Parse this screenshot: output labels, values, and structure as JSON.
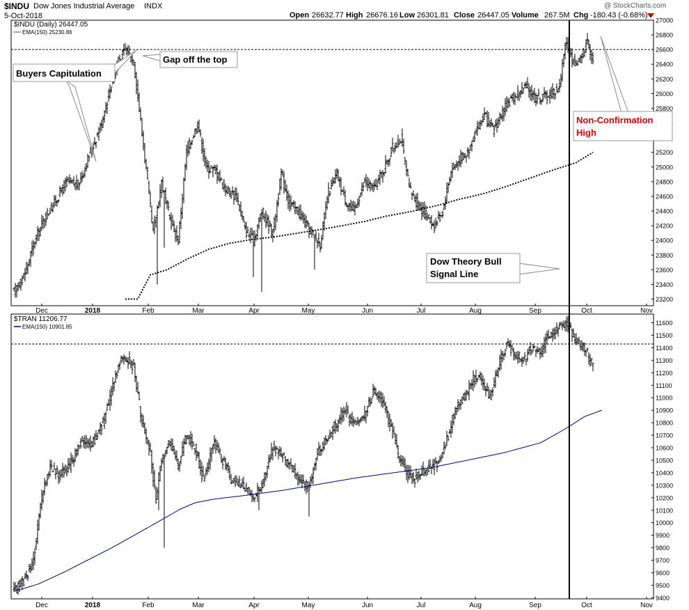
{
  "header": {
    "symbol": "$INDU",
    "name": "Dow Jones Industrial Average",
    "exchange": "INDX",
    "date": "5-Oct-2018",
    "open_label": "Open",
    "open": "26632.77",
    "high_label": "High",
    "high": "26676.16",
    "low_label": "Low",
    "low": "26301.81",
    "close_label": "Close",
    "close": "26447.05",
    "volume_label": "Volume",
    "volume": "267.5M",
    "chg_label": "Chg",
    "chg": "-180.43 (-0.68%)",
    "watermark": "@ StockCharts.com"
  },
  "colors": {
    "up": "#000000",
    "ema_top": "#000000",
    "ema_bottom": "#000080",
    "annotation_red": "#dd0000",
    "arrow_down": "#cc0000"
  },
  "chart_data": [
    {
      "type": "ohlc",
      "panel": "top",
      "legend_symbol": "$INDU (Daily) 26447.05",
      "legend_ema": "EMA(150) 25230.86",
      "ylim": [
        23200,
        27000
      ],
      "yticks": [
        "27000",
        "26800",
        "26600",
        "26400",
        "26200",
        "26000",
        "25800",
        "25600",
        "25400",
        "25200",
        "25000",
        "24800",
        "24600",
        "24400",
        "24200",
        "24000",
        "23800",
        "23600",
        "23400",
        "23200"
      ],
      "xticks": [
        "Dec",
        "2018",
        "Feb",
        "Mar",
        "Apr",
        "May",
        "Jun",
        "Jul",
        "Aug",
        "Sep",
        "Oct",
        "Nov"
      ],
      "resistance": 26600,
      "anchors": [
        [
          0,
          23300
        ],
        [
          8,
          23550
        ],
        [
          15,
          24000
        ],
        [
          22,
          24300
        ],
        [
          30,
          24550
        ],
        [
          38,
          24800
        ],
        [
          46,
          24750
        ],
        [
          55,
          25200
        ],
        [
          63,
          25600
        ],
        [
          68,
          26000
        ],
        [
          74,
          26400
        ],
        [
          80,
          26600
        ],
        [
          86,
          26450
        ],
        [
          93,
          25300
        ],
        [
          100,
          24100
        ],
        [
          106,
          24800
        ],
        [
          112,
          24300
        ],
        [
          118,
          24000
        ],
        [
          124,
          25200
        ],
        [
          132,
          25600
        ],
        [
          138,
          25000
        ],
        [
          145,
          24950
        ],
        [
          152,
          24700
        ],
        [
          160,
          24600
        ],
        [
          166,
          24150
        ],
        [
          172,
          24000
        ],
        [
          178,
          24400
        ],
        [
          186,
          24100
        ],
        [
          192,
          24900
        ],
        [
          198,
          24500
        ],
        [
          204,
          24400
        ],
        [
          212,
          24150
        ],
        [
          220,
          23950
        ],
        [
          226,
          24650
        ],
        [
          232,
          24900
        ],
        [
          238,
          24550
        ],
        [
          244,
          24400
        ],
        [
          252,
          24800
        ],
        [
          258,
          24700
        ],
        [
          264,
          24900
        ],
        [
          272,
          25250
        ],
        [
          278,
          25400
        ],
        [
          284,
          24700
        ],
        [
          290,
          24500
        ],
        [
          296,
          24350
        ],
        [
          302,
          24200
        ],
        [
          308,
          24400
        ],
        [
          314,
          24950
        ],
        [
          320,
          25100
        ],
        [
          326,
          25200
        ],
        [
          332,
          25500
        ],
        [
          338,
          25700
        ],
        [
          344,
          25500
        ],
        [
          350,
          25700
        ],
        [
          356,
          25900
        ],
        [
          362,
          26000
        ],
        [
          368,
          26100
        ],
        [
          374,
          25950
        ],
        [
          380,
          25950
        ],
        [
          386,
          26000
        ],
        [
          392,
          26100
        ],
        [
          396,
          26700
        ],
        [
          400,
          26500
        ],
        [
          404,
          26400
        ],
        [
          408,
          26500
        ],
        [
          412,
          26750
        ],
        [
          416,
          26450
        ]
      ],
      "ema_anchors": [
        [
          0,
          23200
        ],
        [
          6,
          23200
        ],
        [
          12,
          23530
        ],
        [
          20,
          23600
        ],
        [
          30,
          23750
        ],
        [
          40,
          23880
        ],
        [
          50,
          23960
        ],
        [
          60,
          24010
        ],
        [
          72,
          24050
        ],
        [
          85,
          24110
        ],
        [
          100,
          24180
        ],
        [
          115,
          24260
        ],
        [
          125,
          24330
        ],
        [
          138,
          24400
        ],
        [
          150,
          24480
        ],
        [
          160,
          24560
        ],
        [
          172,
          24640
        ],
        [
          182,
          24730
        ],
        [
          194,
          24850
        ],
        [
          204,
          24950
        ],
        [
          216,
          25060
        ],
        [
          224,
          25200
        ]
      ],
      "annotations": [
        {
          "id": "buyers-capitulation",
          "text": "Buyers Capitulation"
        },
        {
          "id": "gap-off-top",
          "text": "Gap off the top"
        },
        {
          "id": "dow-theory",
          "line1": "Dow Theory Bull",
          "line2": "Signal Line"
        },
        {
          "id": "non-confirmation",
          "line1": "Non-Confirmation",
          "line2": "High"
        }
      ]
    },
    {
      "type": "ohlc",
      "panel": "bottom",
      "legend_symbol": "$TRAN 11206.77",
      "legend_ema": "EMA(150) 10901.85",
      "ylim": [
        9400,
        11650
      ],
      "yticks": [
        "11600",
        "11500",
        "11400",
        "11300",
        "11200",
        "11100",
        "11000",
        "10900",
        "10800",
        "10700",
        "10600",
        "10500",
        "10400",
        "10300",
        "10200",
        "10100",
        "10000",
        "9900",
        "9800",
        "9700",
        "9600",
        "9500",
        "9400"
      ],
      "xticks": [
        "Dec",
        "2018",
        "Feb",
        "Mar",
        "Apr",
        "May",
        "Jun",
        "Jul",
        "Aug",
        "Sep",
        "Oct",
        "Nov"
      ],
      "resistance": 11430,
      "anchors": [
        [
          0,
          9450
        ],
        [
          8,
          9550
        ],
        [
          14,
          9700
        ],
        [
          20,
          10200
        ],
        [
          26,
          10450
        ],
        [
          32,
          10380
        ],
        [
          40,
          10450
        ],
        [
          48,
          10650
        ],
        [
          56,
          10630
        ],
        [
          64,
          10800
        ],
        [
          70,
          11050
        ],
        [
          76,
          11300
        ],
        [
          82,
          11300
        ],
        [
          86,
          11250
        ],
        [
          92,
          10800
        ],
        [
          98,
          10550
        ],
        [
          102,
          10200
        ],
        [
          106,
          10500
        ],
        [
          112,
          10650
        ],
        [
          118,
          10450
        ],
        [
          124,
          10700
        ],
        [
          130,
          10600
        ],
        [
          136,
          10350
        ],
        [
          144,
          10650
        ],
        [
          150,
          10500
        ],
        [
          156,
          10350
        ],
        [
          164,
          10300
        ],
        [
          172,
          10200
        ],
        [
          178,
          10300
        ],
        [
          186,
          10600
        ],
        [
          192,
          10550
        ],
        [
          198,
          10450
        ],
        [
          204,
          10350
        ],
        [
          212,
          10300
        ],
        [
          218,
          10550
        ],
        [
          226,
          10700
        ],
        [
          232,
          10800
        ],
        [
          238,
          10900
        ],
        [
          244,
          10800
        ],
        [
          252,
          10850
        ],
        [
          258,
          11050
        ],
        [
          264,
          11000
        ],
        [
          270,
          10800
        ],
        [
          276,
          10550
        ],
        [
          282,
          10400
        ],
        [
          288,
          10350
        ],
        [
          294,
          10400
        ],
        [
          300,
          10450
        ],
        [
          306,
          10500
        ],
        [
          312,
          10700
        ],
        [
          318,
          10950
        ],
        [
          324,
          11000
        ],
        [
          330,
          11150
        ],
        [
          336,
          11150
        ],
        [
          342,
          11000
        ],
        [
          348,
          11250
        ],
        [
          354,
          11450
        ],
        [
          360,
          11350
        ],
        [
          366,
          11300
        ],
        [
          372,
          11400
        ],
        [
          378,
          11350
        ],
        [
          384,
          11500
        ],
        [
          390,
          11550
        ],
        [
          396,
          11600
        ],
        [
          400,
          11550
        ],
        [
          404,
          11450
        ],
        [
          410,
          11400
        ],
        [
          416,
          11250
        ]
      ],
      "ema_anchors": [
        [
          0,
          9450
        ],
        [
          10,
          9510
        ],
        [
          20,
          9600
        ],
        [
          30,
          9700
        ],
        [
          40,
          9800
        ],
        [
          50,
          9910
        ],
        [
          60,
          10020
        ],
        [
          68,
          10110
        ],
        [
          74,
          10160
        ],
        [
          82,
          10190
        ],
        [
          95,
          10220
        ],
        [
          110,
          10260
        ],
        [
          125,
          10310
        ],
        [
          140,
          10360
        ],
        [
          155,
          10400
        ],
        [
          170,
          10440
        ],
        [
          185,
          10500
        ],
        [
          200,
          10560
        ],
        [
          215,
          10640
        ],
        [
          225,
          10750
        ],
        [
          233,
          10850
        ],
        [
          240,
          10900
        ]
      ]
    }
  ]
}
